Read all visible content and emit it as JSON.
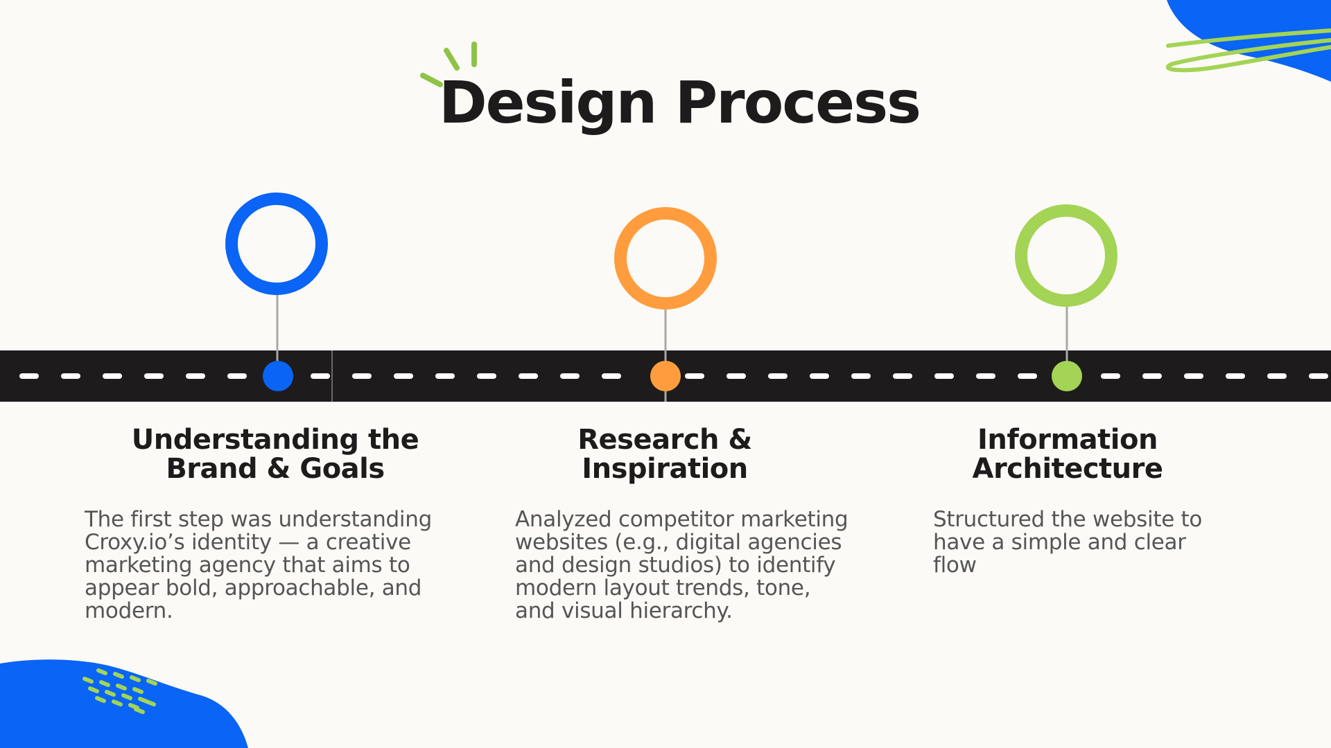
{
  "title": "Design Process",
  "colors": {
    "background": "#fcfaf6",
    "road": "#1d1b1b",
    "blue": "#0a64f5",
    "orange": "#ff9d3e",
    "green": "#a3d455",
    "text_dark": "#1d1b1b",
    "text_body": "#555555"
  },
  "steps": [
    {
      "heading": "Understanding the\nBrand & Goals",
      "description": "The first step was understanding\nCroxy.io’s identity — a creative\nmarketing agency that aims to\nappear bold, approachable, and\nmodern.",
      "color": "#0a64f5",
      "icon": "ring-marker-icon"
    },
    {
      "heading": "Research &\nInspiration",
      "description": "Analyzed competitor marketing\nwebsites (e.g., digital agencies\nand design studios) to identify\nmodern layout trends, tone,\nand visual hierarchy.",
      "color": "#ff9d3e",
      "icon": "ring-marker-icon"
    },
    {
      "heading": "Information\nArchitecture",
      "description": "Structured the website to\nhave a simple and clear\nflow",
      "color": "#a3d455",
      "icon": "ring-marker-icon"
    }
  ]
}
